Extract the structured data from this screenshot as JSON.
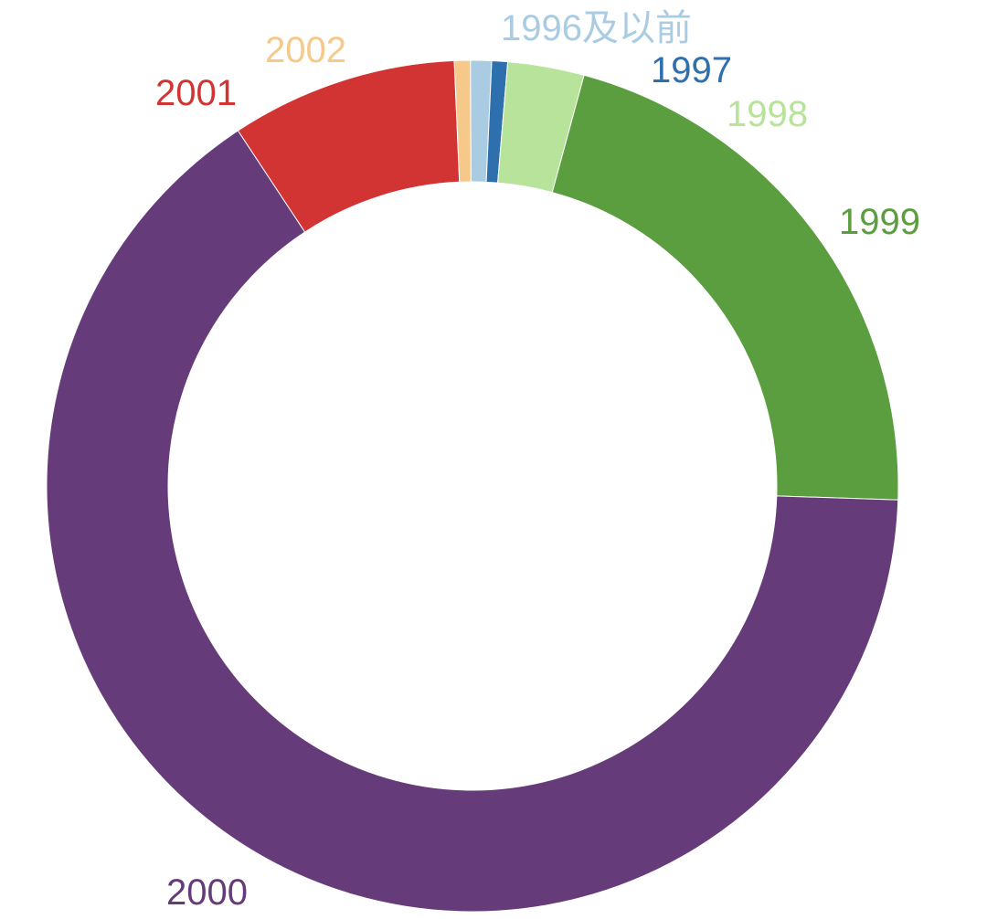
{
  "chart_data": {
    "type": "pie",
    "style": "donut",
    "slices": [
      {
        "label": "1996及以前",
        "value": 0.8,
        "color": "#a9cce3"
      },
      {
        "label": "1997",
        "value": 0.6,
        "color": "#2e6fae"
      },
      {
        "label": "1998",
        "value": 2.9,
        "color": "#b8e39a"
      },
      {
        "label": "1999",
        "value": 21.3,
        "color": "#5a9e3f"
      },
      {
        "label": "2000",
        "value": 65.2,
        "color": "#663b7a"
      },
      {
        "label": "2001",
        "value": 8.6,
        "color": "#d23434"
      },
      {
        "label": "2002",
        "value": 0.6,
        "color": "#f6c98b"
      }
    ],
    "legend": "none",
    "grid": false
  }
}
